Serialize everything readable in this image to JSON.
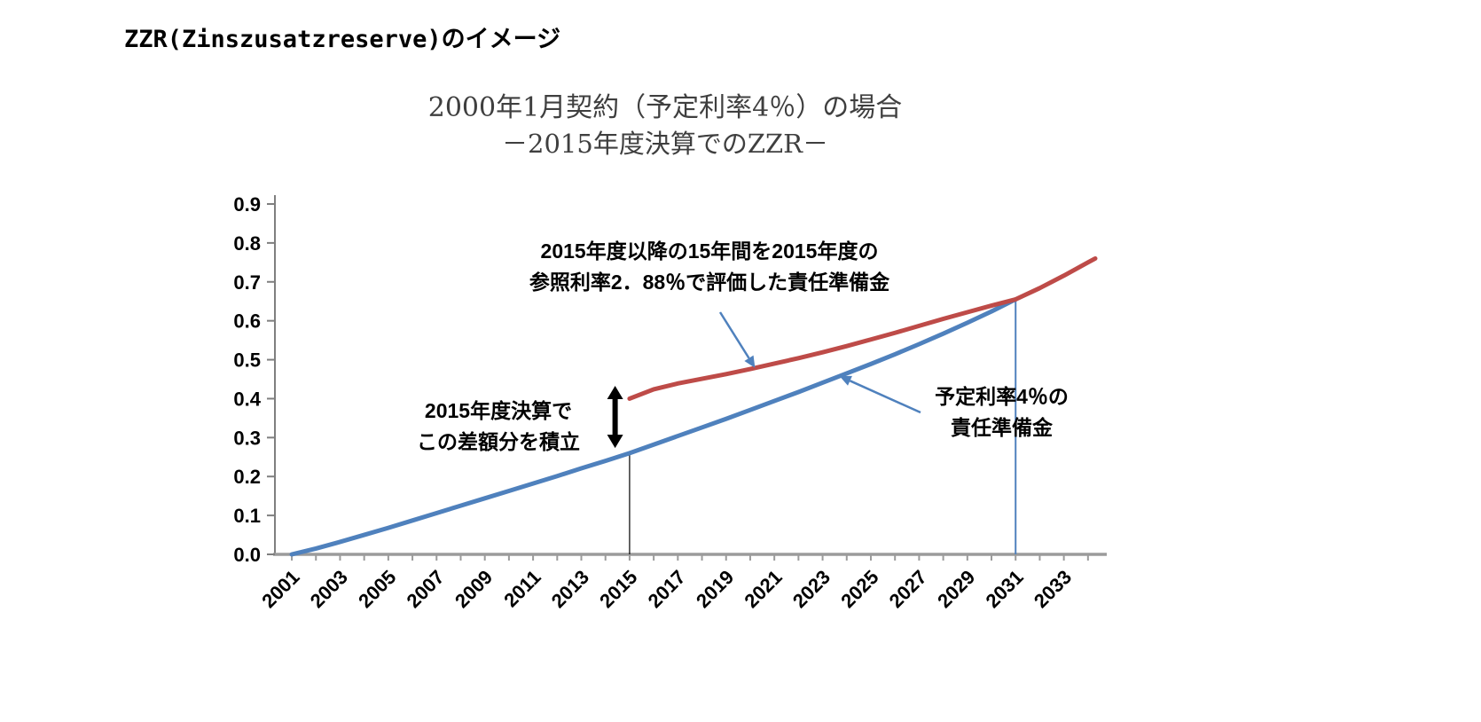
{
  "page": {
    "title": "ZZR(Zinszusatzreserve)のイメージ"
  },
  "chart": {
    "title_line1": "2000年1月契約（予定利率4％）の場合",
    "title_line2": "－2015年度決算でのZZR－"
  },
  "annotations": {
    "red_note": "2015年度以降の15年間を2015年度の\n参照利率2．88％で評価した責任準備金",
    "blue_note": "予定利率4％の\n責任準備金",
    "gap_note": "2015年度決算で\nこの差額分を積立"
  },
  "chart_data": {
    "type": "line",
    "title": "2000年1月契約（予定利率4％）の場合 －2015年度決算でのZZR－",
    "xlabel": "",
    "ylabel": "",
    "xlim": [
      2000.3,
      2034.3
    ],
    "ylim": [
      0,
      0.9
    ],
    "x_ticks": [
      2001,
      2003,
      2005,
      2007,
      2009,
      2011,
      2013,
      2015,
      2017,
      2019,
      2021,
      2023,
      2025,
      2027,
      2029,
      2031,
      2033
    ],
    "y_ticks": [
      0,
      0.1,
      0.2,
      0.3,
      0.4,
      0.5,
      0.6,
      0.7,
      0.8,
      0.9
    ],
    "grid": false,
    "legend": false,
    "series": [
      {
        "name": "予定利率4％の責任準備金",
        "color": "#4F81BD",
        "x": [
          2001,
          2002,
          2003,
          2004,
          2005,
          2006,
          2007,
          2008,
          2009,
          2010,
          2011,
          2012,
          2013,
          2014,
          2015,
          2016,
          2017,
          2018,
          2019,
          2020,
          2021,
          2022,
          2023,
          2024,
          2025,
          2026,
          2027,
          2028,
          2029,
          2030,
          2031
        ],
        "y": [
          0.0,
          0.015,
          0.032,
          0.05,
          0.068,
          0.087,
          0.106,
          0.125,
          0.144,
          0.163,
          0.182,
          0.201,
          0.221,
          0.24,
          0.26,
          0.282,
          0.304,
          0.326,
          0.348,
          0.371,
          0.394,
          0.417,
          0.441,
          0.465,
          0.489,
          0.514,
          0.54,
          0.567,
          0.595,
          0.624,
          0.655
        ]
      },
      {
        "name": "参照利率2．88％で評価した責任準備金",
        "color": "#BE4B48",
        "x": [
          2015,
          2016,
          2017,
          2018,
          2019,
          2020,
          2021,
          2022,
          2023,
          2024,
          2025,
          2026,
          2027,
          2028,
          2029,
          2030,
          2031,
          2032,
          2033,
          2034,
          2034.3
        ],
        "y": [
          0.4,
          0.424,
          0.439,
          0.451,
          0.463,
          0.476,
          0.49,
          0.504,
          0.519,
          0.535,
          0.552,
          0.569,
          0.587,
          0.605,
          0.622,
          0.639,
          0.655,
          0.684,
          0.716,
          0.75,
          0.76
        ]
      }
    ],
    "markers": {
      "vline_2015": {
        "x": 2015,
        "y0": 0,
        "y1": 0.26,
        "color": "#000000",
        "width": 1.2
      },
      "vline_2031": {
        "x": 2031,
        "y0": 0,
        "y1": 0.655,
        "color": "#4F81BD",
        "width": 2
      },
      "gap_arrow": {
        "x": 2014.4,
        "y0": 0.273,
        "y1": 0.433,
        "color": "#000000"
      }
    },
    "callouts": [
      {
        "target_x": 2020.2,
        "target_y": 0.479,
        "color": "#4F81BD"
      },
      {
        "target_x": 2023.7,
        "target_y": 0.458,
        "color": "#4F81BD"
      }
    ]
  }
}
